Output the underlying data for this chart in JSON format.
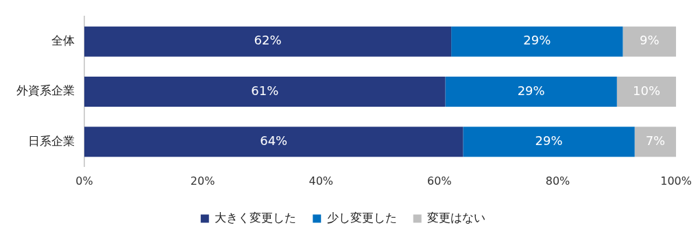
{
  "chart_data": {
    "type": "bar",
    "orientation": "horizontal",
    "stacked": true,
    "categories": [
      "全体",
      "外資系企業",
      "日系企業"
    ],
    "series": [
      {
        "name": "大きく変更した",
        "color": "#263a80",
        "values": [
          62,
          61,
          64
        ],
        "value_labels": [
          "62%",
          "61%",
          "64%"
        ]
      },
      {
        "name": "少し変更した",
        "color": "#0070c0",
        "values": [
          29,
          29,
          29
        ],
        "value_labels": [
          "29%",
          "29%",
          "29%"
        ]
      },
      {
        "name": "変更はない",
        "color": "#bfbfbf",
        "values": [
          9,
          10,
          7
        ],
        "value_labels": [
          "9%",
          "10%",
          "7%"
        ]
      }
    ],
    "xlim": [
      0,
      100
    ],
    "xticks": [
      {
        "value": 0,
        "label": "0%"
      },
      {
        "value": 20,
        "label": "20%"
      },
      {
        "value": 40,
        "label": "40%"
      },
      {
        "value": 60,
        "label": "60%"
      },
      {
        "value": 80,
        "label": "80%"
      },
      {
        "value": 100,
        "label": "100%"
      }
    ],
    "grid": false,
    "legend": "bottom"
  }
}
